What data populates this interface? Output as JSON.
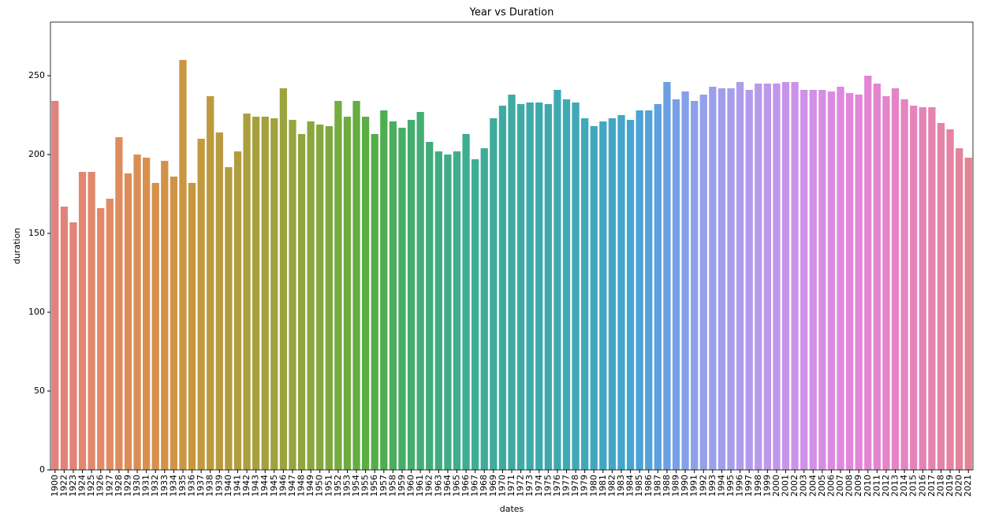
{
  "chart_data": {
    "type": "bar",
    "title": "Year vs Duration",
    "x_label": "dates",
    "y_label": "duration",
    "categories": [
      "1900",
      "1922",
      "1923",
      "1924",
      "1925",
      "1926",
      "1927",
      "1928",
      "1929",
      "1930",
      "1931",
      "1932",
      "1933",
      "1934",
      "1935",
      "1936",
      "1937",
      "1938",
      "1939",
      "1940",
      "1941",
      "1942",
      "1943",
      "1944",
      "1945",
      "1946",
      "1947",
      "1948",
      "1949",
      "1950",
      "1951",
      "1952",
      "1953",
      "1954",
      "1955",
      "1956",
      "1957",
      "1958",
      "1959",
      "1960",
      "1961",
      "1962",
      "1963",
      "1964",
      "1965",
      "1966",
      "1967",
      "1968",
      "1969",
      "1970",
      "1971",
      "1972",
      "1973",
      "1974",
      "1975",
      "1976",
      "1977",
      "1978",
      "1979",
      "1980",
      "1981",
      "1982",
      "1983",
      "1984",
      "1985",
      "1986",
      "1987",
      "1988",
      "1989",
      "1990",
      "1991",
      "1992",
      "1993",
      "1994",
      "1995",
      "1996",
      "1997",
      "1998",
      "1999",
      "2000",
      "2001",
      "2002",
      "2003",
      "2004",
      "2005",
      "2006",
      "2007",
      "2008",
      "2009",
      "2010",
      "2011",
      "2012",
      "2013",
      "2014",
      "2015",
      "2016",
      "2017",
      "2018",
      "2019",
      "2020",
      "2021"
    ],
    "values": [
      234,
      167,
      157,
      189,
      189,
      166,
      172,
      211,
      188,
      200,
      198,
      182,
      196,
      186,
      260,
      182,
      210,
      237,
      214,
      192,
      202,
      226,
      224,
      224,
      223,
      242,
      222,
      213,
      221,
      219,
      218,
      234,
      224,
      234,
      224,
      213,
      228,
      221,
      217,
      222,
      227,
      208,
      202,
      200,
      202,
      213,
      197,
      204,
      223,
      231,
      238,
      232,
      233,
      233,
      232,
      241,
      235,
      233,
      223,
      218,
      221,
      223,
      225,
      222,
      228,
      228,
      232,
      246,
      235,
      240,
      234,
      238,
      243,
      242,
      242,
      246,
      241,
      245,
      245,
      245,
      246,
      246,
      241,
      241,
      241,
      240,
      243,
      239,
      238,
      250,
      245,
      237,
      242,
      235,
      231,
      230,
      230,
      220,
      216,
      204,
      198
    ],
    "colors": [
      "#e2827f",
      "#e2837a",
      "#e28576",
      "#e28672",
      "#e2886e",
      "#e2896a",
      "#e08b64",
      "#de8c5e",
      "#dc8d58",
      "#da8e54",
      "#d88f50",
      "#d5914c",
      "#d29248",
      "#cf9445",
      "#cb9642",
      "#c7973e",
      "#c2993e",
      "#bd9a3e",
      "#b89b3e",
      "#b49c3e",
      "#b09d3e",
      "#ab9f3e",
      "#a7a03e",
      "#a3a13e",
      "#a0a23e",
      "#9ca33e",
      "#96a53e",
      "#90a63e",
      "#8aa73e",
      "#84a83e",
      "#7ea93e",
      "#76ab3f",
      "#6dac40",
      "#64ad42",
      "#5cae44",
      "#54ae48",
      "#4eae52",
      "#4aae5c",
      "#47ae65",
      "#45ae6e",
      "#43ae76",
      "#42ad7c",
      "#41ad82",
      "#40ad88",
      "#40ad8d",
      "#3fad91",
      "#3fac95",
      "#3fac99",
      "#3fac9d",
      "#3faba0",
      "#3faba3",
      "#3eaba6",
      "#3eaaa9",
      "#3eaaac",
      "#3eaaaf",
      "#3fa9b2",
      "#3fa9b5",
      "#40a8b8",
      "#40a8bb",
      "#41a7be",
      "#42a7c2",
      "#43a6c6",
      "#45a5cb",
      "#48a4d0",
      "#4ca3d5",
      "#53a2da",
      "#5ea1df",
      "#6aa0e3",
      "#77a0e6",
      "#83a0e8",
      "#8da0ea",
      "#95a0eb",
      "#9c9feb",
      "#a29eeb",
      "#a89dec",
      "#ae9cec",
      "#b39bec",
      "#b89aec",
      "#bd98eb",
      "#c296eb",
      "#c794ea",
      "#cb92e9",
      "#cf90e8",
      "#d38ee6",
      "#d78ce4",
      "#db8ae2",
      "#de88df",
      "#e087dc",
      "#e286d8",
      "#e385d4",
      "#e485cf",
      "#e484ca",
      "#e484c5",
      "#e484c0",
      "#e484bb",
      "#e483b6",
      "#e483b0",
      "#e483aa",
      "#e483a3",
      "#e4839c",
      "#e48395"
    ],
    "ylim": [
      0,
      284
    ],
    "yticks": [
      0,
      50,
      100,
      150,
      200,
      250
    ],
    "grid": false
  }
}
